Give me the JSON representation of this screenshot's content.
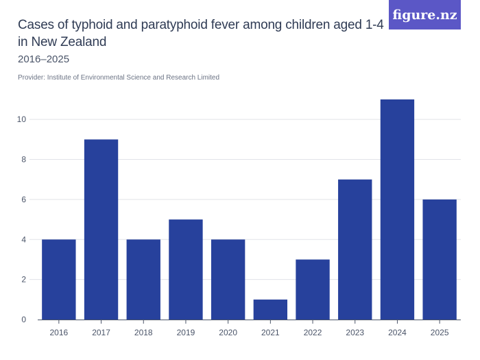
{
  "header": {
    "title": "Cases of typhoid and paratyphoid fever among children aged 1-4 in New Zealand",
    "subtitle": "2016–2025",
    "provider": "Provider: Institute of Environmental Science and Research Limited"
  },
  "brand": {
    "logo_text": "figure.nz",
    "logo_color": "#5b57c6"
  },
  "chart_data": {
    "type": "bar",
    "title": "Cases of typhoid and paratyphoid fever among children aged 1-4 in New Zealand",
    "subtitle": "2016–2025",
    "xlabel": "",
    "ylabel": "",
    "categories": [
      "2016",
      "2017",
      "2018",
      "2019",
      "2020",
      "2021",
      "2022",
      "2023",
      "2024",
      "2025"
    ],
    "values": [
      4,
      9,
      4,
      5,
      4,
      1,
      3,
      7,
      11,
      6
    ],
    "ylim": [
      0,
      11
    ],
    "yticks": [
      0,
      2,
      4,
      6,
      8,
      10
    ],
    "grid": true,
    "bar_color": "#27419c"
  }
}
